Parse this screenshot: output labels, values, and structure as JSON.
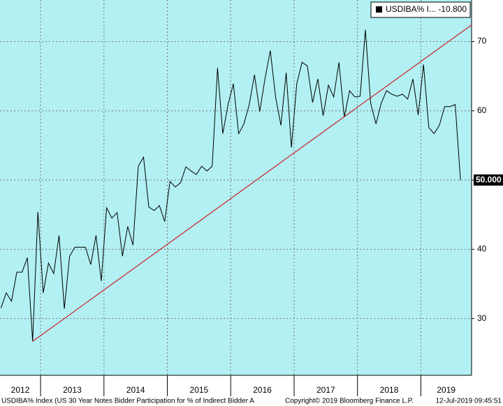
{
  "chart_data": {
    "type": "line",
    "series": [
      {
        "name": "USDIBA% I...",
        "color": "#000000",
        "x": [
          2012.375,
          2012.458,
          2012.542,
          2012.625,
          2012.708,
          2012.792,
          2012.875,
          2012.958,
          2013.042,
          2013.125,
          2013.208,
          2013.292,
          2013.375,
          2013.458,
          2013.542,
          2013.625,
          2013.708,
          2013.792,
          2013.875,
          2013.958,
          2014.042,
          2014.125,
          2014.208,
          2014.292,
          2014.375,
          2014.458,
          2014.542,
          2014.625,
          2014.708,
          2014.792,
          2014.875,
          2014.958,
          2015.042,
          2015.125,
          2015.208,
          2015.292,
          2015.375,
          2015.458,
          2015.542,
          2015.625,
          2015.708,
          2015.792,
          2015.875,
          2015.958,
          2016.042,
          2016.125,
          2016.208,
          2016.292,
          2016.375,
          2016.458,
          2016.542,
          2016.625,
          2016.708,
          2016.792,
          2016.875,
          2016.958,
          2017.042,
          2017.125,
          2017.208,
          2017.292,
          2017.375,
          2017.458,
          2017.542,
          2017.625,
          2017.708,
          2017.792,
          2017.875,
          2017.958,
          2018.042,
          2018.125,
          2018.208,
          2018.292,
          2018.375,
          2018.458,
          2018.542,
          2018.625,
          2018.708,
          2018.792,
          2018.875,
          2018.958,
          2019.042,
          2019.125,
          2019.208,
          2019.292,
          2019.375,
          2019.458,
          2019.542,
          2019.625
        ],
        "values": [
          31.5,
          33.7,
          32.5,
          36.7,
          36.7,
          38.8,
          26.7,
          45.4,
          33.7,
          38,
          36.5,
          42,
          31.4,
          39,
          40.3,
          40.3,
          40.3,
          37.8,
          42,
          35.4,
          46,
          44.5,
          45.3,
          39,
          43.3,
          40.6,
          52,
          53.3,
          46.1,
          45.6,
          46.3,
          44,
          49.8,
          49,
          49.6,
          51.9,
          51.3,
          50.8,
          52,
          51.3,
          52,
          66.2,
          56.7,
          60.9,
          63.9,
          56.7,
          58.1,
          60.9,
          65.2,
          59.9,
          64.7,
          68.7,
          62,
          57.9,
          65.5,
          54.7,
          63.9,
          67,
          66.5,
          61.2,
          64.6,
          59.3,
          63.7,
          62,
          67,
          59.1,
          62.9,
          62,
          62.1,
          71.7,
          61.1,
          58.1,
          61.1,
          62.9,
          62.4,
          62.1,
          62.4,
          61.7,
          64.6,
          59.4,
          66.7,
          57.6,
          56.7,
          57.9,
          60.6,
          60.6,
          60.9,
          50.0
        ],
        "change": {
          "value": -10.8,
          "label": "-10.800"
        },
        "last_value_label": "50.000"
      }
    ],
    "trendline": {
      "color": "#cc2222",
      "x": [
        2012.875,
        2019.8
      ],
      "values": [
        26.7,
        72.4
      ]
    },
    "xlim": [
      2012.36,
      2019.8
    ],
    "xticks": [
      2012,
      2013,
      2014,
      2015,
      2016,
      2017,
      2018,
      2019
    ],
    "ylim": [
      21.8,
      76.0
    ],
    "yticks": [
      30,
      40,
      50,
      60,
      70
    ],
    "grid": true
  },
  "footer": {
    "description": "USDIBA% Index (US 30 Year Notes Bidder Participation for % of Indirect Bidder A",
    "copyright": "Copyright© 2019 Bloomberg Finance L.P.",
    "timestamp": "12-Jul-2019 09:45:51"
  }
}
